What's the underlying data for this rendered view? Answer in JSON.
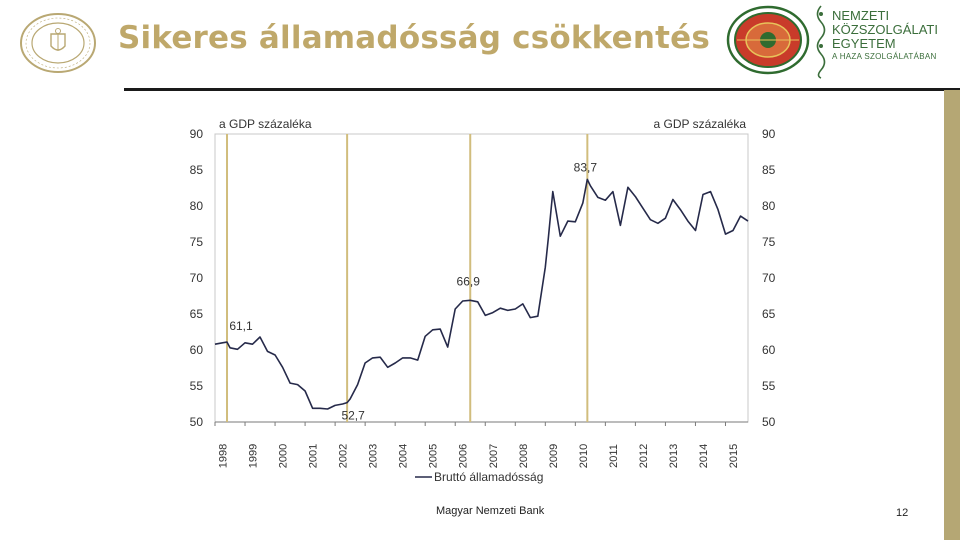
{
  "slide": {
    "title": "Sikeres államadósság csökkentés",
    "footer": "Magyar Nemzeti Bank",
    "page_number": "12"
  },
  "logos": {
    "mnb_logo": "mnb-seal-logo",
    "university_logo": "nke-seal-logo",
    "university_text": [
      "NEMZETI",
      "KÖZSZOLGÁLATI",
      "EGYETEM",
      "A HAZA SZOLGÁLATÁBAN"
    ]
  },
  "colors": {
    "title": "#bfa86a",
    "accent": "#b5a774",
    "line": "#262a4a",
    "vline": "#d1bd7d"
  },
  "chart_data": {
    "type": "line",
    "ylabel_left": "a GDP százaléka",
    "ylabel_right": "a GDP százaléka",
    "ylim": [
      50,
      90
    ],
    "yticks": [
      50,
      55,
      60,
      65,
      70,
      75,
      80,
      85,
      90
    ],
    "xlim": [
      1998,
      2015.75
    ],
    "xticks": [
      "1998",
      "1999",
      "2000",
      "2001",
      "2002",
      "2003",
      "2004",
      "2005",
      "2006",
      "2007",
      "2008",
      "2009",
      "2010",
      "2011",
      "2012",
      "2013",
      "2014",
      "2015"
    ],
    "legend": "Bruttó államadósság",
    "legend_position": "bottom",
    "grid": false,
    "vertical_markers": [
      1998.4,
      2002.4,
      2006.5,
      2010.4
    ],
    "annotations": [
      {
        "text": "61,1",
        "x": 1998.4,
        "y": 61.1
      },
      {
        "text": "52,7",
        "x": 2002.4,
        "y": 52.7
      },
      {
        "text": "66,9",
        "x": 2006.5,
        "y": 66.9
      },
      {
        "text": "83,7",
        "x": 2010.4,
        "y": 83.7
      }
    ],
    "series": [
      {
        "name": "Bruttó államadósság",
        "x": [
          1998.0,
          1998.25,
          1998.4,
          1998.5,
          1998.75,
          1999.0,
          1999.25,
          1999.5,
          1999.75,
          2000.0,
          2000.25,
          2000.5,
          2000.75,
          2001.0,
          2001.25,
          2001.5,
          2001.75,
          2002.0,
          2002.25,
          2002.4,
          2002.5,
          2002.75,
          2003.0,
          2003.25,
          2003.5,
          2003.75,
          2004.0,
          2004.25,
          2004.5,
          2004.75,
          2005.0,
          2005.25,
          2005.5,
          2005.75,
          2006.0,
          2006.25,
          2006.5,
          2006.75,
          2007.0,
          2007.25,
          2007.5,
          2007.75,
          2008.0,
          2008.25,
          2008.5,
          2008.75,
          2009.0,
          2009.1,
          2009.25,
          2009.5,
          2009.75,
          2010.0,
          2010.25,
          2010.4,
          2010.5,
          2010.75,
          2011.0,
          2011.25,
          2011.5,
          2011.75,
          2012.0,
          2012.25,
          2012.5,
          2012.75,
          2013.0,
          2013.25,
          2013.5,
          2013.75,
          2014.0,
          2014.25,
          2014.5,
          2014.75,
          2015.0,
          2015.25,
          2015.5,
          2015.75
        ],
        "y": [
          60.8,
          61.0,
          61.1,
          60.3,
          60.1,
          61.0,
          60.8,
          61.8,
          59.8,
          59.3,
          57.6,
          55.4,
          55.2,
          54.3,
          51.9,
          51.9,
          51.8,
          52.3,
          52.5,
          52.7,
          53.2,
          55.2,
          58.2,
          58.9,
          59.0,
          57.6,
          58.2,
          58.9,
          58.9,
          58.6,
          61.9,
          62.8,
          62.9,
          60.4,
          65.7,
          66.8,
          66.9,
          66.7,
          64.8,
          65.2,
          65.8,
          65.5,
          65.7,
          66.4,
          64.5,
          64.7,
          71.5,
          75.5,
          82.0,
          75.8,
          77.9,
          77.8,
          80.4,
          83.7,
          82.8,
          81.2,
          80.8,
          82.0,
          77.3,
          82.6,
          81.3,
          79.7,
          78.1,
          77.6,
          78.3,
          80.9,
          79.5,
          77.9,
          76.6,
          81.6,
          82.0,
          79.5,
          76.1,
          76.6,
          78.6,
          77.9
        ]
      }
    ]
  }
}
